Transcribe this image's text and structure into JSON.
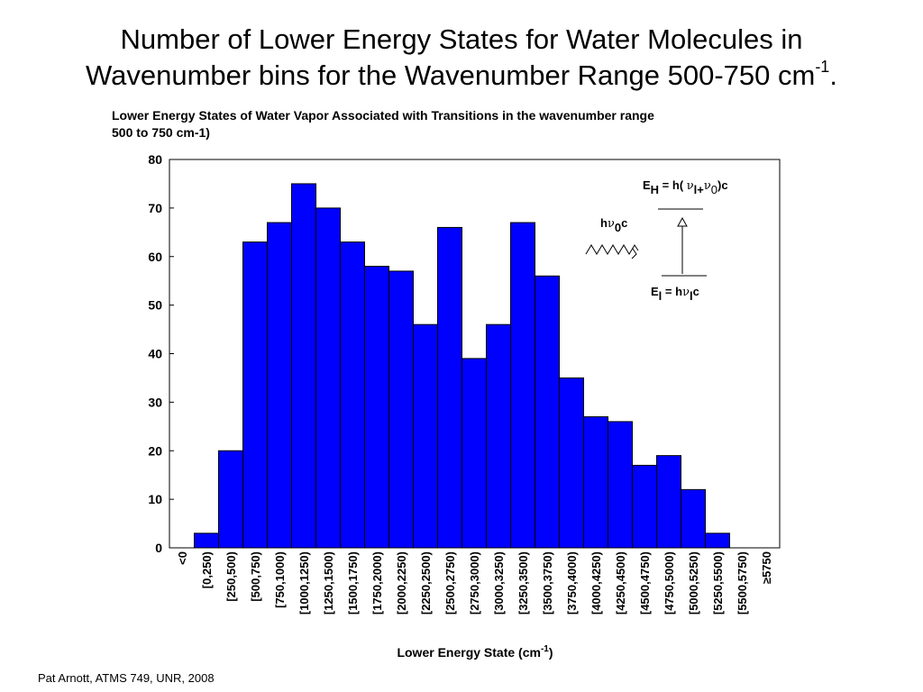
{
  "slide": {
    "title_line1": "Number of Lower Energy States for Water Molecules in",
    "title_line2": "Wavenumber bins for the Wavenumber Range 500-750 cm",
    "title_sup": "-1",
    "title_end": ".",
    "footer": "Pat Arnott, ATMS 749, UNR, 2008"
  },
  "chart_data": {
    "type": "bar",
    "title": "Lower Energy States of Water Vapor Associated with Transitions in the wavenumber range 500 to 750 cm-1)",
    "title_line1": "Lower Energy States of Water Vapor Associated with Transitions in the wavenumber range",
    "title_line2": "500 to 750 cm-1)",
    "xlabel": "Lower Energy State (cm",
    "xlabel_sup": "-1",
    "xlabel_end": ")",
    "ylabel": "",
    "ylim": [
      0,
      80
    ],
    "yticks": [
      0,
      10,
      20,
      30,
      40,
      50,
      60,
      70,
      80
    ],
    "categories": [
      "<0",
      "[0,250)",
      "[250,500)",
      "[500,750)",
      "[750,1000)",
      "[1000,1250)",
      "[1250,1500)",
      "[1500,1750)",
      "[1750,2000)",
      "[2000,2250)",
      "[2250,2500)",
      "[2500,2750)",
      "[2750,3000)",
      "[3000,3250)",
      "[3250,3500)",
      "[3500,3750)",
      "[3750,4000)",
      "[4000,4250)",
      "[4250,4500)",
      "[4500,4750)",
      "[4750,5000)",
      "[5000,5250)",
      "[5250,5500)",
      "[5500,5750)",
      "≥5750"
    ],
    "values": [
      0,
      3,
      20,
      63,
      67,
      75,
      70,
      63,
      58,
      57,
      46,
      66,
      39,
      46,
      67,
      56,
      35,
      27,
      26,
      17,
      19,
      12,
      3,
      0,
      0
    ],
    "bar_color": "#0000ff",
    "grid": false,
    "legend": "none"
  },
  "inset": {
    "upper_level": {
      "E": "E",
      "sub": "H",
      "eq": " = h( ",
      "nu": "ν",
      "sub2": "l+",
      "nu2": "ν",
      "sub3": "0",
      "end": ")c"
    },
    "photon": {
      "h": "h",
      "nu": "ν",
      "sub": "0",
      "c": "c"
    },
    "lower_level": {
      "E": "E",
      "sub": "l",
      "eq": " = h",
      "nu": "ν",
      "sub2": "l",
      "c": "c"
    }
  }
}
